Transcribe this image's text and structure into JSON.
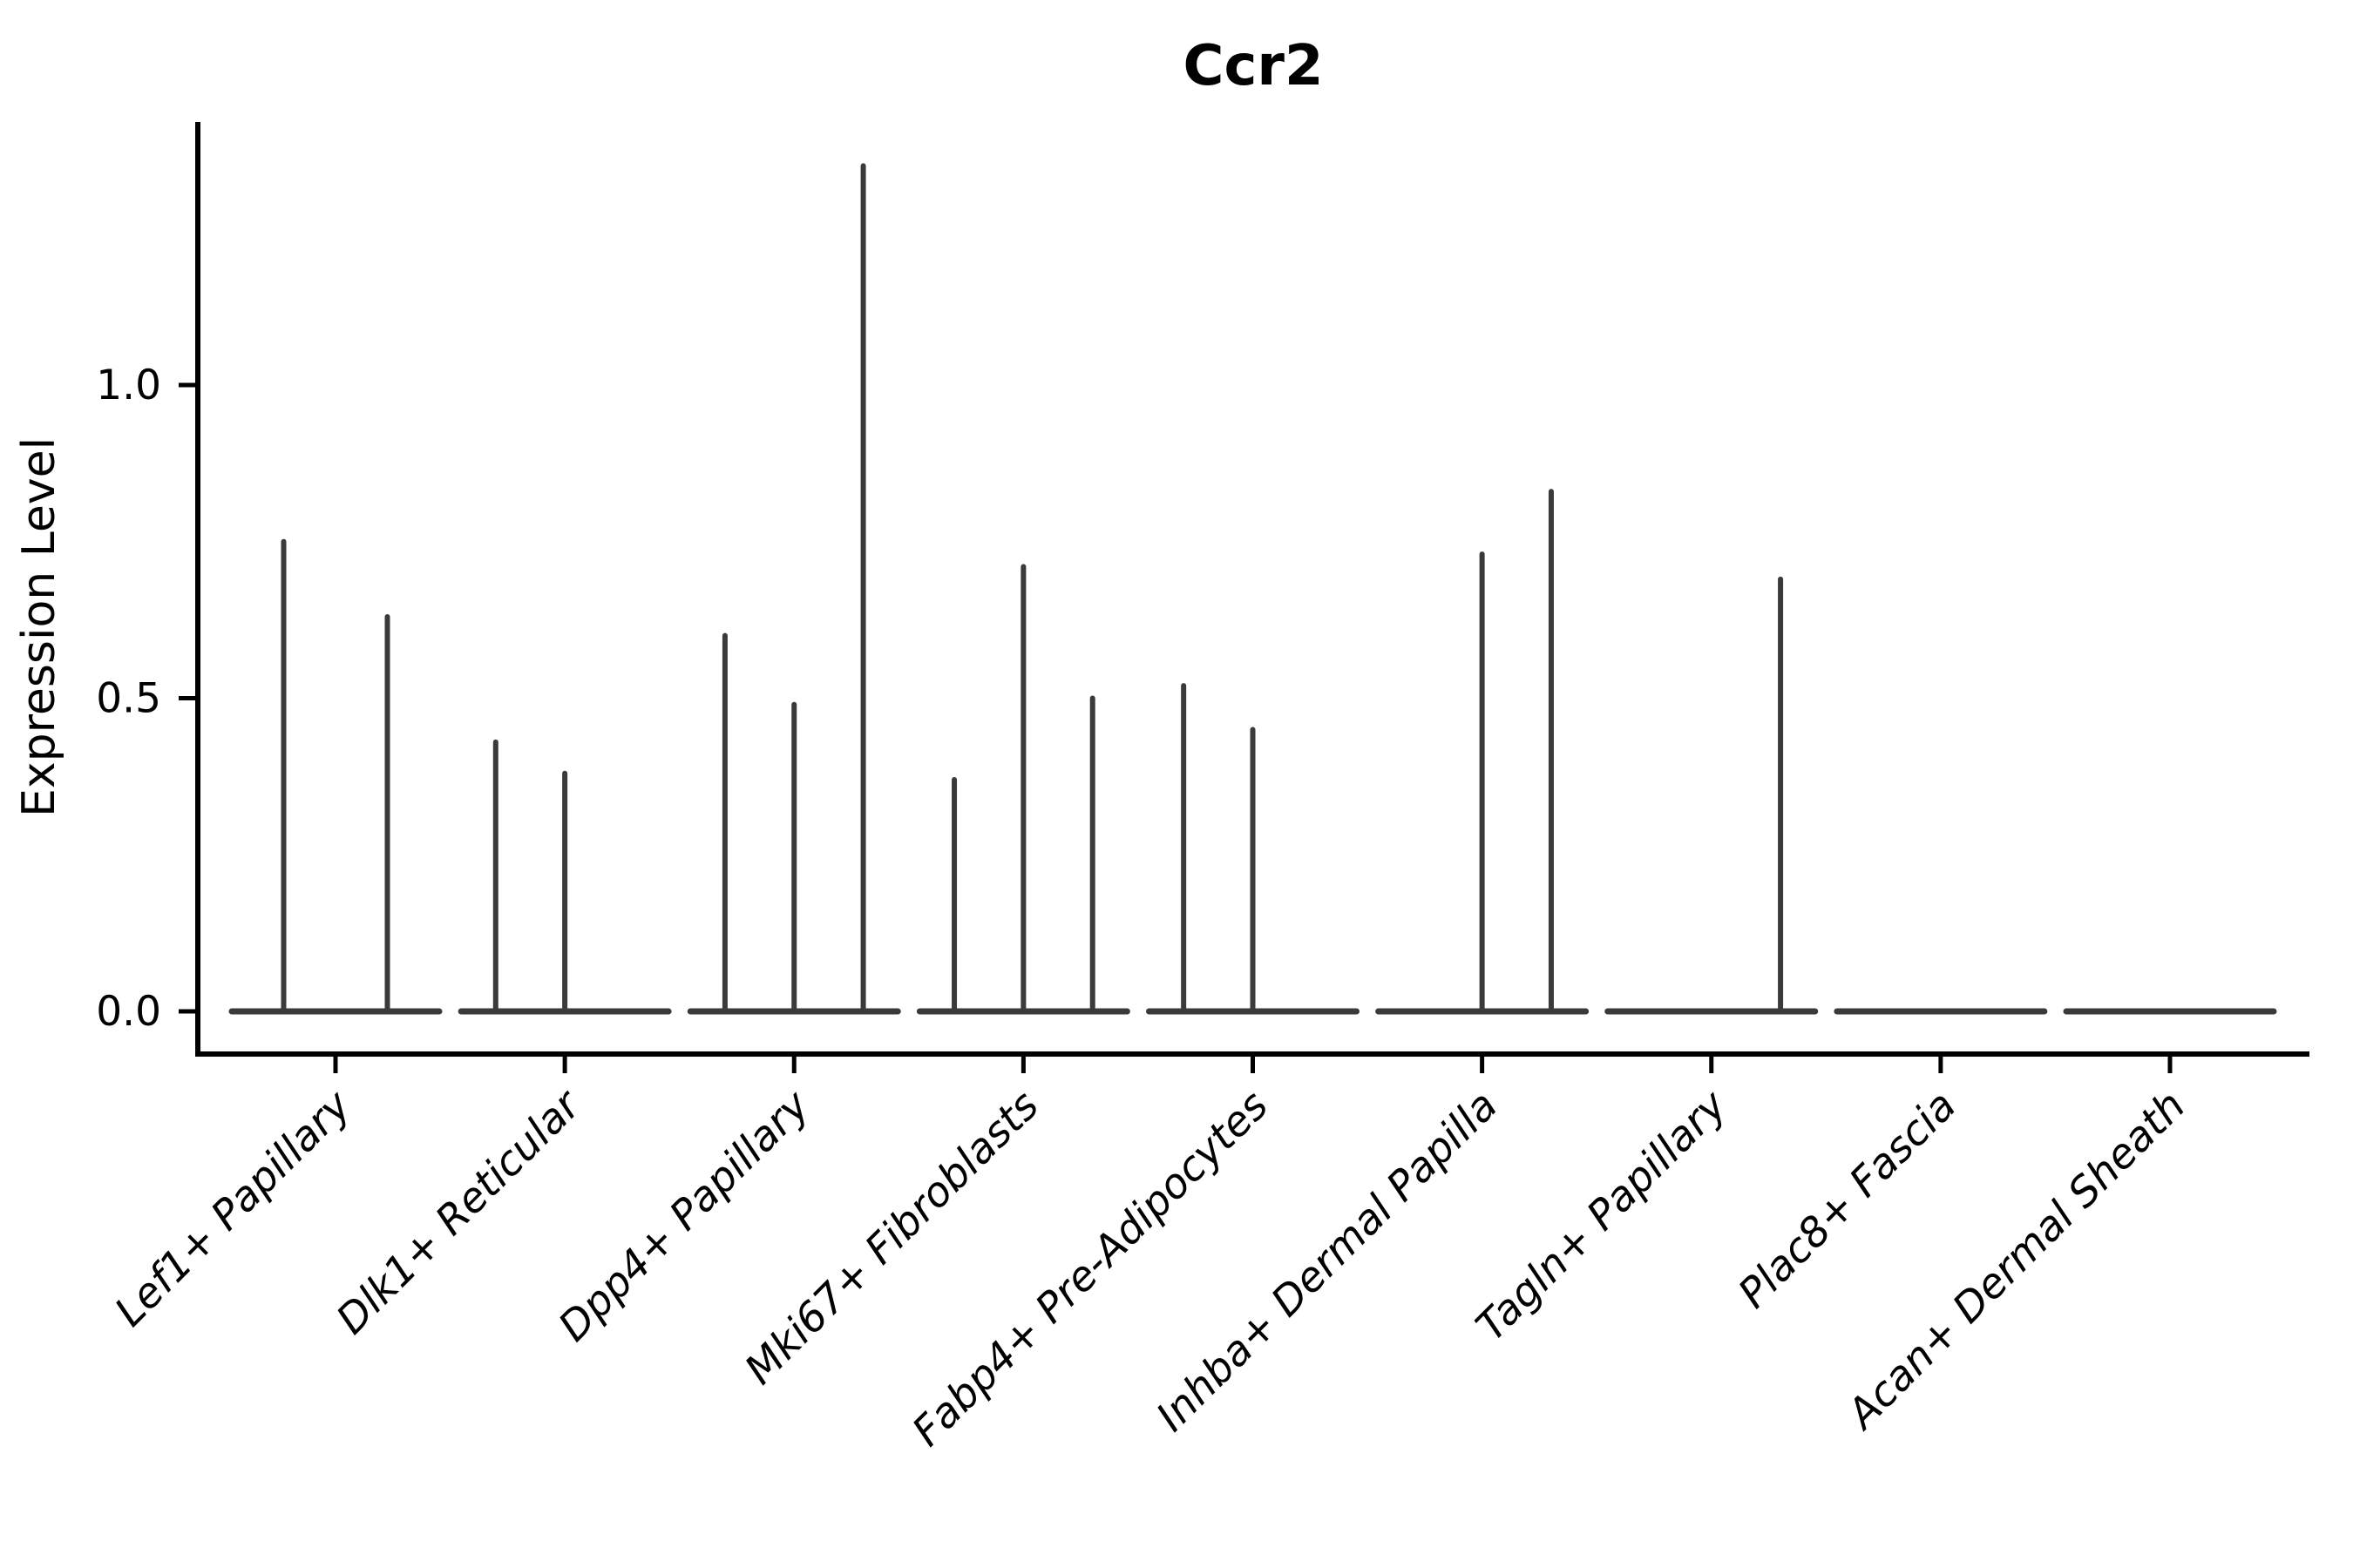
{
  "chart_data": {
    "type": "violin",
    "title": "Ccr2",
    "xlabel": "",
    "ylabel": "Expression Level",
    "yticks": [
      0.0,
      0.5,
      1.0
    ],
    "ylim": [
      -0.07,
      1.42
    ],
    "grid": false,
    "legend": false,
    "note": "Single-cell expression violin plot; most cells have zero expression so each violin collapses to a flat zero-line with a thin spike reaching the maximum expression of its group",
    "categories": [
      {
        "label": "Lef1+ Papillary",
        "n_violins": 2,
        "violins": [
          {
            "slot": 1,
            "max_expression": 0.75
          },
          {
            "slot": 2,
            "max_expression": 0.63
          }
        ]
      },
      {
        "label": "Dlk1+ Reticular",
        "n_violins": 3,
        "violins": [
          {
            "slot": 1,
            "max_expression": 0.43
          },
          {
            "slot": 2,
            "max_expression": 0.38
          }
        ]
      },
      {
        "label": "Dpp4+ Papillary",
        "n_violins": 3,
        "violins": [
          {
            "slot": 1,
            "max_expression": 0.6
          },
          {
            "slot": 2,
            "max_expression": 0.49
          },
          {
            "slot": 3,
            "max_expression": 1.35
          }
        ]
      },
      {
        "label": "Mki67+ Fibroblasts",
        "n_violins": 3,
        "violins": [
          {
            "slot": 1,
            "max_expression": 0.37
          },
          {
            "slot": 2,
            "max_expression": 0.71
          },
          {
            "slot": 3,
            "max_expression": 0.5
          }
        ]
      },
      {
        "label": "Fabp4+ Pre-Adipocytes",
        "n_violins": 3,
        "violins": [
          {
            "slot": 1,
            "max_expression": 0.52
          },
          {
            "slot": 2,
            "max_expression": 0.45
          }
        ]
      },
      {
        "label": "Inhba+ Dermal Papilla",
        "n_violins": 3,
        "violins": [
          {
            "slot": 2,
            "max_expression": 0.73
          },
          {
            "slot": 3,
            "max_expression": 0.83
          }
        ]
      },
      {
        "label": "Tagln+ Papillary",
        "n_violins": 3,
        "violins": [
          {
            "slot": 3,
            "max_expression": 0.69
          }
        ]
      },
      {
        "label": "Plac8+ Fascia",
        "n_violins": 3,
        "violins": []
      },
      {
        "label": "Acan+ Dermal Sheath",
        "n_violins": 3,
        "violins": []
      }
    ],
    "style": {
      "violin_color": "#3a3a3a",
      "axis_color": "#000000",
      "background": "#ffffff"
    }
  }
}
